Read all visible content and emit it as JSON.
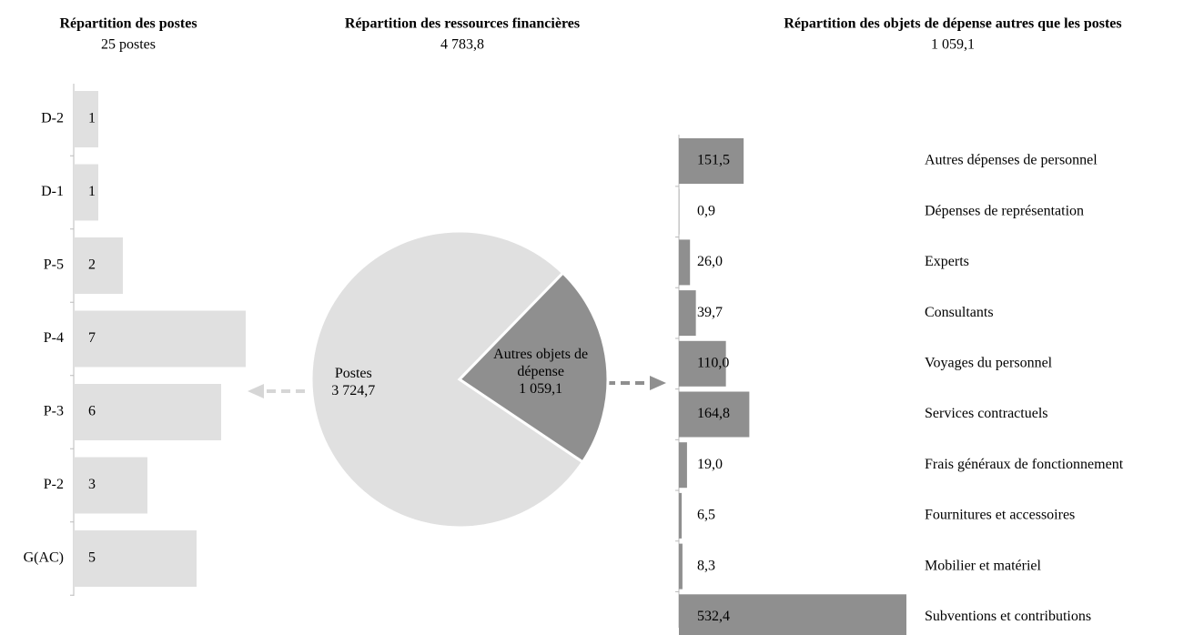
{
  "chart_data": [
    {
      "type": "barh",
      "title": "Répartition des postes",
      "subtitle": "25 postes",
      "categories": [
        "D-2",
        "D-1",
        "P-5",
        "P-4",
        "P-3",
        "P-2",
        "G(AC)"
      ],
      "values": [
        1,
        1,
        2,
        7,
        6,
        3,
        5
      ],
      "color": "#e0e0e0"
    },
    {
      "type": "pie",
      "title": "Répartition des ressources financières",
      "subtitle": "4 783,8",
      "categories": [
        "Postes",
        "Autres objets de dépense"
      ],
      "values": [
        3724.7,
        1059.1
      ],
      "value_labels": [
        "3 724,7",
        "1 059,1"
      ],
      "colors": [
        "#e0e0e0",
        "#8f8f8f"
      ]
    },
    {
      "type": "barh",
      "title": "Répartition des objets de dépense autres que les postes",
      "subtitle": "1 059,1",
      "categories": [
        "Autres dépenses de personnel",
        "Dépenses de représentation",
        "Experts",
        "Consultants",
        "Voyages du personnel",
        "Services contractuels",
        "Frais généraux de fonctionnement",
        "Fournitures et accessoires",
        "Mobilier et matériel",
        "Subventions et contributions"
      ],
      "values": [
        151.5,
        0.9,
        26.0,
        39.7,
        110.0,
        164.8,
        19.0,
        6.5,
        8.3,
        532.4
      ],
      "value_labels": [
        "151,5",
        "0,9",
        "26,0",
        "39,7",
        "110,0",
        "164,8",
        "19,0",
        "6,5",
        "8,3",
        "532,4"
      ],
      "color": "#8f8f8f"
    }
  ]
}
